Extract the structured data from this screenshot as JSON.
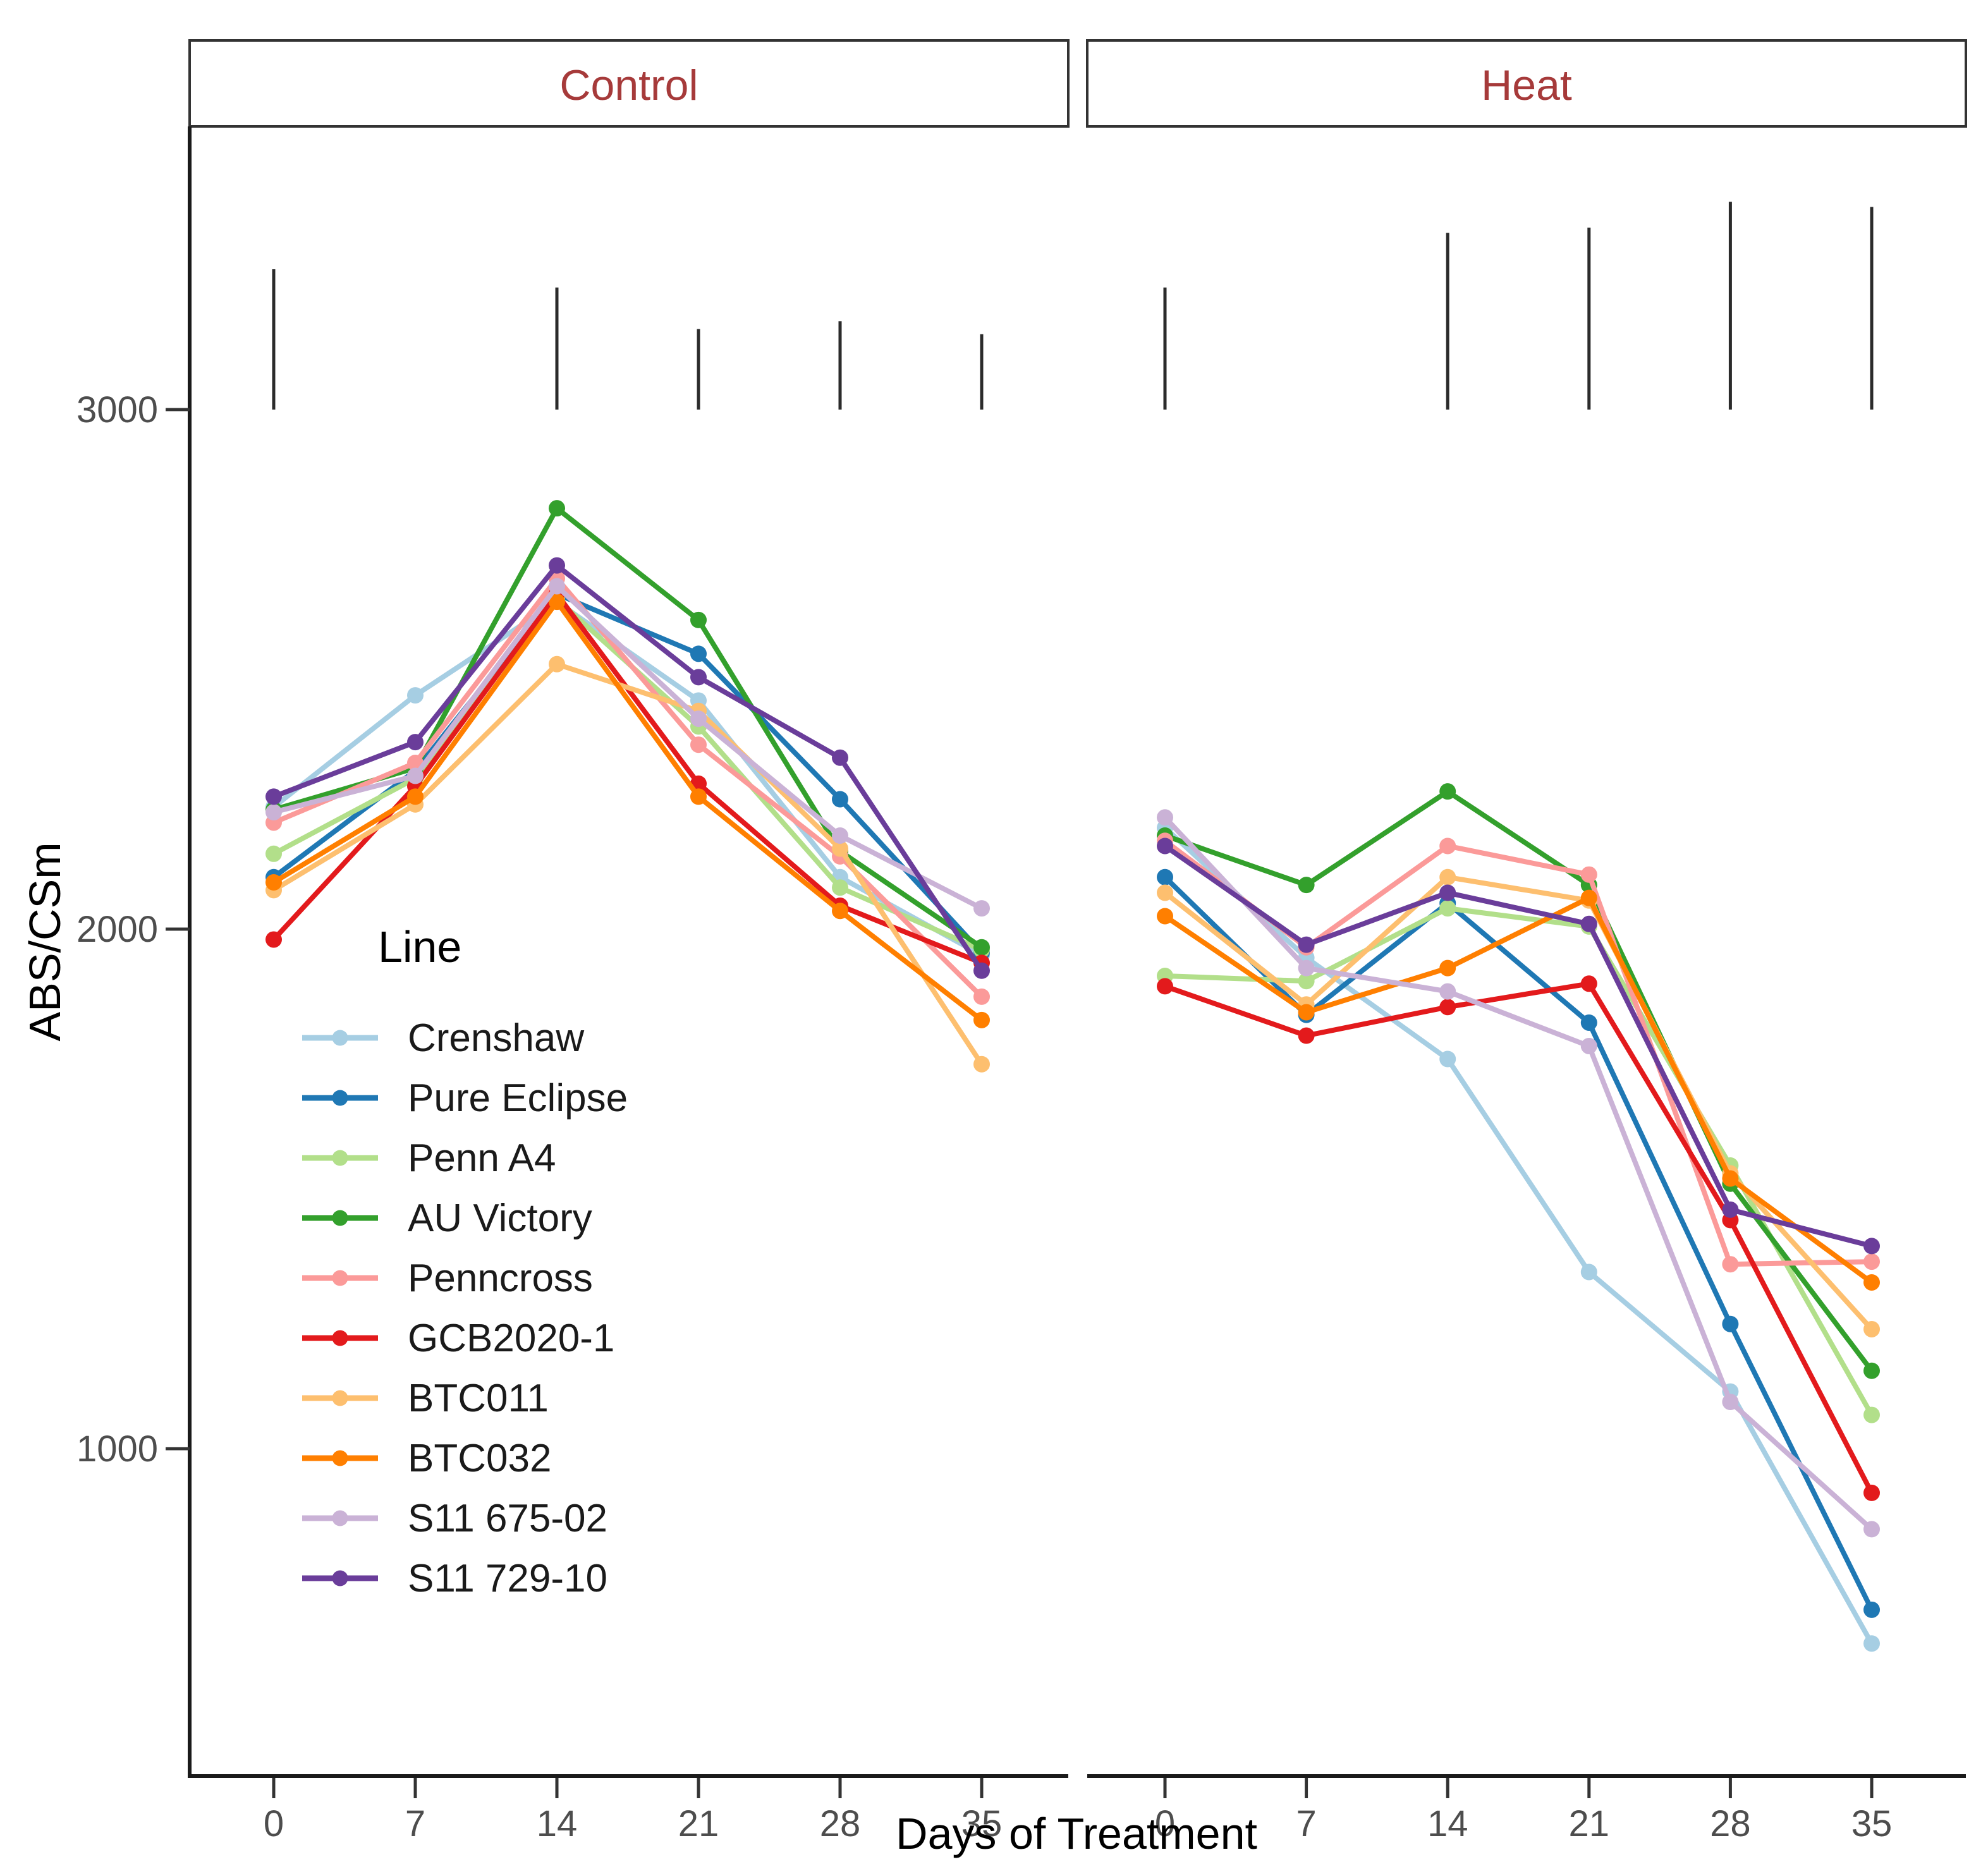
{
  "chart_data": {
    "type": "line",
    "facets": [
      {
        "key": "control",
        "label": "Control"
      },
      {
        "key": "heat",
        "label": "Heat"
      }
    ],
    "x": [
      0,
      7,
      14,
      21,
      28,
      35
    ],
    "xlabel": "Days of Treatment",
    "ylabel": "ABS/CSm",
    "yticks": [
      1000,
      2000,
      3000
    ],
    "ylim": [
      400,
      3550
    ],
    "grid": false,
    "legend_title": "Line",
    "legend_position": "inside-control-panel",
    "strip_text_color": "#a63a3a",
    "series": [
      {
        "name": "Crenshaw",
        "color": "#a6cee3",
        "control": [
          2235,
          2450,
          2630,
          2440,
          2100,
          1950
        ],
        "heat": [
          2195,
          1945,
          1750,
          1340,
          1110,
          625
        ]
      },
      {
        "name": "Pure Eclipse",
        "color": "#1f78b4",
        "control": [
          2100,
          2305,
          2645,
          2530,
          2250,
          1955
        ],
        "heat": [
          2100,
          1835,
          2050,
          1820,
          1240,
          690
        ]
      },
      {
        "name": "Penn A4",
        "color": "#b2df8a",
        "control": [
          2145,
          2290,
          2635,
          2390,
          2080,
          1960
        ],
        "heat": [
          1910,
          1900,
          2040,
          2005,
          1545,
          1065
        ]
      },
      {
        "name": "AU Victory",
        "color": "#33a02c",
        "control": [
          2230,
          2310,
          2810,
          2595,
          2150,
          1965
        ],
        "heat": [
          2180,
          2085,
          2265,
          2085,
          1510,
          1150
        ]
      },
      {
        "name": "Penncross",
        "color": "#fb9a99",
        "control": [
          2205,
          2320,
          2675,
          2355,
          2140,
          1870
        ],
        "heat": [
          2170,
          1965,
          2160,
          2105,
          1355,
          1360
        ]
      },
      {
        "name": "GCB2020-1",
        "color": "#e31a1c",
        "control": [
          1980,
          2275,
          2645,
          2280,
          2045,
          1935
        ],
        "heat": [
          1890,
          1795,
          1850,
          1895,
          1440,
          915
        ]
      },
      {
        "name": "BTC011",
        "color": "#fdbf6f",
        "control": [
          2075,
          2240,
          2510,
          2420,
          2155,
          1740
        ],
        "heat": [
          2070,
          1855,
          2100,
          2055,
          1530,
          1230
        ]
      },
      {
        "name": "BTC032",
        "color": "#ff7f00",
        "control": [
          2090,
          2255,
          2630,
          2255,
          2035,
          1825
        ],
        "heat": [
          2025,
          1840,
          1925,
          2060,
          1520,
          1320
        ]
      },
      {
        "name": "S11 675-02",
        "color": "#cab2d6",
        "control": [
          2225,
          2295,
          2660,
          2405,
          2180,
          2040
        ],
        "heat": [
          2215,
          1925,
          1880,
          1775,
          1090,
          845
        ]
      },
      {
        "name": "S11 729-10",
        "color": "#6a3d9a",
        "control": [
          2255,
          2360,
          2700,
          2485,
          2330,
          1920
        ],
        "heat": [
          2160,
          1970,
          2070,
          2010,
          1460,
          1390
        ]
      }
    ],
    "error_bars": {
      "control": [
        {
          "day": 0,
          "from": 3000,
          "to": 3270
        },
        {
          "day": 14,
          "from": 3000,
          "to": 3235
        },
        {
          "day": 21,
          "from": 3000,
          "to": 3155
        },
        {
          "day": 28,
          "from": 3000,
          "to": 3170
        },
        {
          "day": 35,
          "from": 3000,
          "to": 3145
        }
      ],
      "heat": [
        {
          "day": 0,
          "from": 3000,
          "to": 3235
        },
        {
          "day": 14,
          "from": 3000,
          "to": 3340
        },
        {
          "day": 21,
          "from": 3000,
          "to": 3350
        },
        {
          "day": 28,
          "from": 3000,
          "to": 3400
        },
        {
          "day": 35,
          "from": 3000,
          "to": 3390
        }
      ]
    }
  }
}
